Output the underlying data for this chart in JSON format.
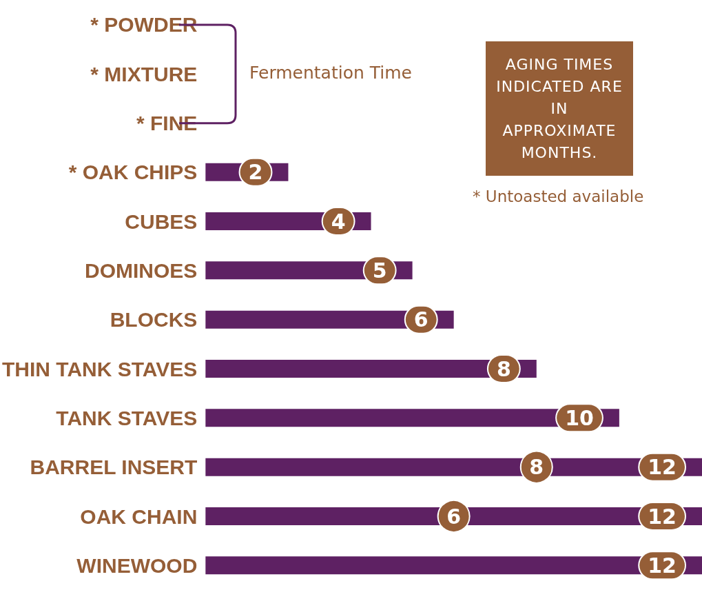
{
  "chart_data": {
    "type": "bar",
    "orientation": "horizontal",
    "categories": [
      "* POWDER",
      "* MIXTURE",
      "* FINE",
      "* OAK CHIPS",
      "CUBES",
      "DOMINOES",
      "BLOCKS",
      "THIN TANK STAVES",
      "TANK STAVES",
      "BARREL INSERT",
      "OAK CHAIN",
      "WINEWOOD"
    ],
    "series": [
      {
        "color": "#5e2163",
        "values": [
          null,
          null,
          null,
          2,
          4,
          5,
          6,
          8,
          10,
          12,
          12,
          12
        ]
      },
      {
        "type": "scatter",
        "color": "#955e37",
        "x": [
          "BARREL INSERT",
          "OAK CHAIN"
        ],
        "values": [
          8,
          6
        ]
      }
    ],
    "data_labels": true,
    "annotations": [
      "Fermentation Time",
      "AGING TIMES INDICATED ARE IN APPROXIMATE MONTHS.",
      "* Untoasted available"
    ]
  }
}
